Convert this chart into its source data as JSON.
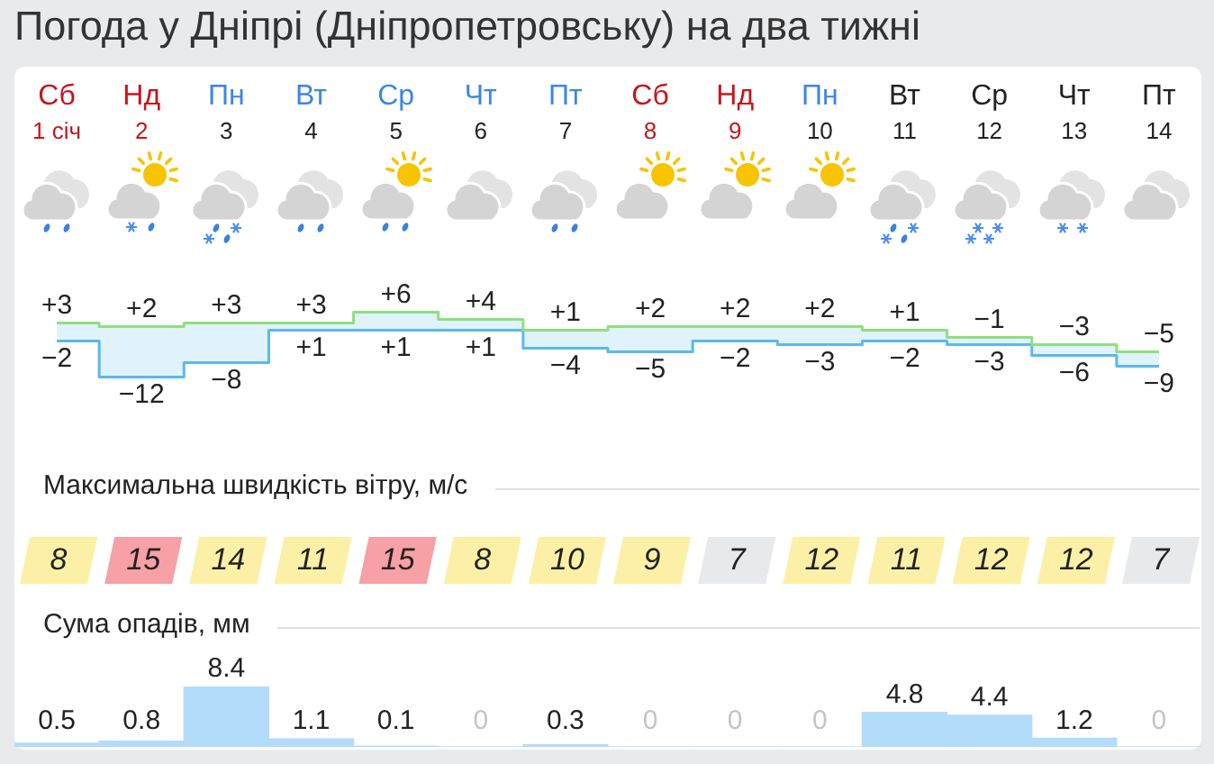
{
  "chart_data": [
    {
      "type": "step",
      "title": "Погода у Дніпрі (Дніпропетровську) на два тижні",
      "categories": [
        "Сб 1 січ",
        "Нд 2",
        "Пн 3",
        "Вт 4",
        "Ср 5",
        "Чт 6",
        "Пт 7",
        "Сб 8",
        "Нд 9",
        "Пн 10",
        "Вт 11",
        "Ср 12",
        "Чт 13",
        "Пт 14"
      ],
      "tick_labels": "x",
      "series": [
        {
          "color": "#8fdf7f",
          "values": [
            3,
            2,
            3,
            3,
            6,
            4,
            1,
            2,
            2,
            2,
            1,
            -1,
            -3,
            -5
          ],
          "value_labels": [
            "+3",
            "+2",
            "+3",
            "+3",
            "+6",
            "+4",
            "+1",
            "+2",
            "+2",
            "+2",
            "+1",
            "−1",
            "−3",
            "−5"
          ]
        },
        {
          "color": "#5ab9ec",
          "values": [
            -2,
            -12,
            -8,
            1,
            1,
            1,
            -4,
            -5,
            -2,
            -3,
            -2,
            -3,
            -6,
            -9
          ],
          "value_labels": [
            "−2",
            "−12",
            "−8",
            "+1",
            "+1",
            "+1",
            "−4",
            "−5",
            "−2",
            "−3",
            "−2",
            "−3",
            "−6",
            "−9"
          ]
        }
      ]
    },
    {
      "type": "heatmap",
      "title": "Максимальна швидкість вітру, м/с",
      "categories": [
        null,
        null,
        null,
        null,
        null,
        null,
        null,
        null,
        null,
        null,
        null,
        null,
        null,
        null
      ],
      "y_categories": [
        null
      ],
      "cells": [
        [
          8,
          15,
          14,
          11,
          15,
          8,
          10,
          9,
          7,
          12,
          11,
          12,
          12,
          7
        ]
      ],
      "colors": [
        "#fbf0a6",
        "#f7a0a6",
        "#fbf0a6",
        "#fbf0a6",
        "#f7a0a6",
        "#fbf0a6",
        "#fbf0a6",
        "#fbf0a6",
        "#e8e9eb",
        "#fbf0a6",
        "#fbf0a6",
        "#fbf0a6",
        "#fbf0a6",
        "#e8e9eb"
      ],
      "data_labels": true,
      "tick_labels": false
    },
    {
      "type": "bar",
      "title": "Сума опадів, мм",
      "categories": [
        null,
        null,
        null,
        null,
        null,
        null,
        null,
        null,
        null,
        null,
        null,
        null,
        null,
        null
      ],
      "values": [
        0.5,
        0.8,
        8.4,
        1.1,
        0.1,
        0,
        0.3,
        0,
        0,
        0,
        4.8,
        4.4,
        1.2,
        0
      ],
      "color": "#b3dcfb",
      "data_labels": true,
      "tick_labels": false
    }
  ]
}
